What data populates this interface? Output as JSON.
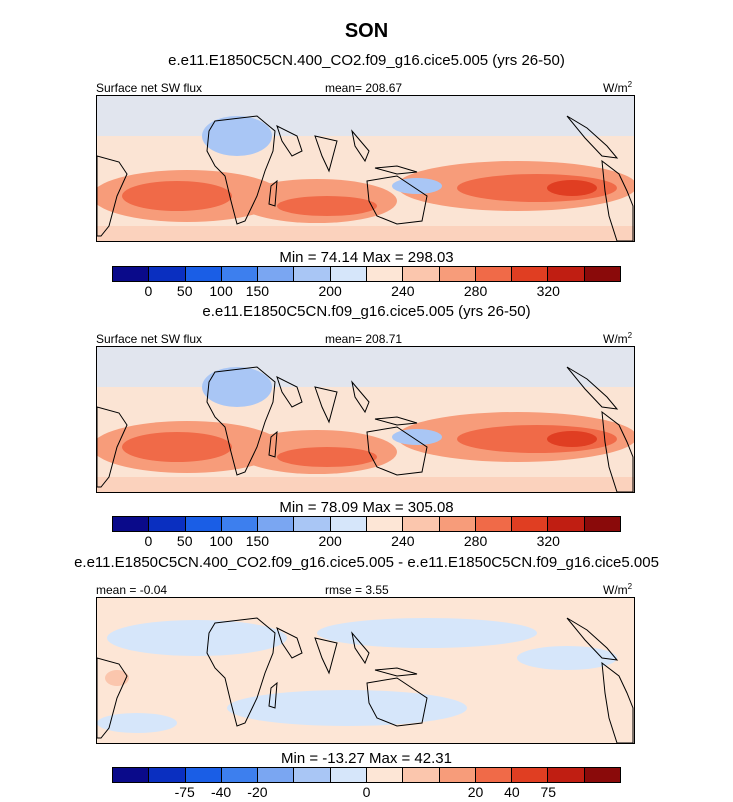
{
  "page": {
    "title": "SON"
  },
  "panels": [
    {
      "case_title": "e.e11.E1850C5CN.400_CO2.f09_g16.cice5.005 (yrs 26-50)",
      "left_label": "Surface net SW flux",
      "center_label": "mean= 208.67",
      "units": "W/m",
      "units_exp": "2",
      "minmax": "Min =  74.14 Max = 298.03",
      "colorbar_ticks": [
        "0",
        "50",
        "100",
        "150",
        "200",
        "240",
        "280",
        "320"
      ],
      "style": "abs"
    },
    {
      "case_title": "e.e11.E1850C5CN.f09_g16.cice5.005 (yrs 26-50)",
      "left_label": "Surface net SW flux",
      "center_label": "mean= 208.71",
      "units": "W/m",
      "units_exp": "2",
      "minmax": "Min =  78.09 Max = 305.08",
      "colorbar_ticks": [
        "0",
        "50",
        "100",
        "150",
        "200",
        "240",
        "280",
        "320"
      ],
      "style": "abs"
    },
    {
      "case_title": "e.e11.E1850C5CN.400_CO2.f09_g16.cice5.005 - e.e11.E1850C5CN.f09_g16.cice5.005",
      "left_label": "mean =  -0.04",
      "center_label": "rmse =   3.55",
      "units": "W/m",
      "units_exp": "2",
      "minmax": "Min = -13.27 Max =  42.31",
      "colorbar_ticks": [
        "-75",
        "-40",
        "-20",
        "0",
        "20",
        "40",
        "75"
      ],
      "style": "diff"
    }
  ],
  "colorbar_colors": [
    "#0a0a8a",
    "#0a2fc0",
    "#1a5ee6",
    "#3d7fee",
    "#7aa6f2",
    "#a9c6f5",
    "#d6e6fa",
    "#fde6d6",
    "#fbc6ad",
    "#f79c7a",
    "#f06a48",
    "#e03e22",
    "#c01e12",
    "#8a0a0a"
  ],
  "colors": {
    "map_ocean_light": "#fbe4d4",
    "land_line": "#000000"
  }
}
